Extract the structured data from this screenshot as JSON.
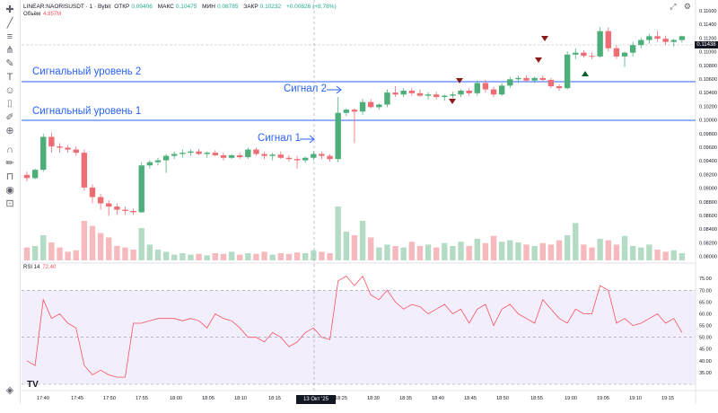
{
  "header": {
    "symbol": "LINEAR:NAORISUSDT · 1 · Bybit",
    "open_label": "ОТКР",
    "open": "0.09406",
    "high_label": "МАКС",
    "high": "0.10475",
    "low_label": "МИН",
    "low": "0.08785",
    "close_label": "ЗАКР",
    "close": "0.10232",
    "change": "+0.00826 (+8.78%)"
  },
  "volume": {
    "label": "Объём",
    "value": "4.857M"
  },
  "rsi": {
    "label": "RSI 14",
    "value": "72.40"
  },
  "price_badge": "0.11438",
  "time_badge": "13 Окт '25 18:21",
  "annotations": {
    "level2": "Сигнальный уровень 2",
    "level1": "Сигнальный уровень 1",
    "signal1": "Сигнал 1",
    "signal2": "Сигнал 2"
  },
  "logo": "TV",
  "chart_data": {
    "type": "candlestick",
    "price_axis": [
      "0.11600",
      "0.11400",
      "0.11200",
      "0.11000",
      "0.10800",
      "0.10600",
      "0.10400",
      "0.10200",
      "0.10000",
      "0.09800",
      "0.09600",
      "0.09400",
      "0.09200",
      "0.09000",
      "0.08800",
      "0.08600",
      "0.08400",
      "0.08200",
      "0.08000"
    ],
    "rsi_axis": [
      "75.00",
      "70.00",
      "65.00",
      "60.00",
      "55.00",
      "50.00",
      "45.00",
      "40.00",
      "35.00"
    ],
    "time_axis": [
      "17:40",
      "17:45",
      "17:50",
      "17:55",
      "18:00",
      "18:05",
      "18:10",
      "18:15",
      "18:25",
      "18:30",
      "18:35",
      "18:40",
      "18:45",
      "18:50",
      "18:55",
      "19:00",
      "19:05",
      "19:10",
      "19:15"
    ],
    "candles": [
      {
        "o": 0.0925,
        "h": 0.093,
        "l": 0.0915,
        "c": 0.092
      },
      {
        "o": 0.092,
        "h": 0.0935,
        "l": 0.0918,
        "c": 0.0933
      },
      {
        "o": 0.0933,
        "h": 0.099,
        "l": 0.093,
        "c": 0.0985
      },
      {
        "o": 0.0985,
        "h": 0.0992,
        "l": 0.096,
        "c": 0.097
      },
      {
        "o": 0.097,
        "h": 0.0975,
        "l": 0.096,
        "c": 0.0968
      },
      {
        "o": 0.0968,
        "h": 0.0972,
        "l": 0.096,
        "c": 0.0965
      },
      {
        "o": 0.0965,
        "h": 0.097,
        "l": 0.0955,
        "c": 0.096
      },
      {
        "o": 0.096,
        "h": 0.0965,
        "l": 0.09,
        "c": 0.0905
      },
      {
        "o": 0.0905,
        "h": 0.091,
        "l": 0.088,
        "c": 0.089
      },
      {
        "o": 0.089,
        "h": 0.0895,
        "l": 0.087,
        "c": 0.088
      },
      {
        "o": 0.088,
        "h": 0.0885,
        "l": 0.086,
        "c": 0.0875
      },
      {
        "o": 0.0875,
        "h": 0.088,
        "l": 0.0862,
        "c": 0.087
      },
      {
        "o": 0.087,
        "h": 0.0875,
        "l": 0.0862,
        "c": 0.0868
      },
      {
        "o": 0.0868,
        "h": 0.0872,
        "l": 0.0862,
        "c": 0.0866
      },
      {
        "o": 0.0866,
        "h": 0.0945,
        "l": 0.0865,
        "c": 0.094
      },
      {
        "o": 0.094,
        "h": 0.0948,
        "l": 0.0935,
        "c": 0.0945
      },
      {
        "o": 0.0945,
        "h": 0.0952,
        "l": 0.094,
        "c": 0.0948
      },
      {
        "o": 0.0948,
        "h": 0.0958,
        "l": 0.0928,
        "c": 0.0955
      },
      {
        "o": 0.0955,
        "h": 0.0962,
        "l": 0.095,
        "c": 0.0958
      },
      {
        "o": 0.0958,
        "h": 0.0965,
        "l": 0.0952,
        "c": 0.096
      },
      {
        "o": 0.096,
        "h": 0.0965,
        "l": 0.0955,
        "c": 0.0962
      },
      {
        "o": 0.0962,
        "h": 0.0966,
        "l": 0.0956,
        "c": 0.0958
      },
      {
        "o": 0.0958,
        "h": 0.0962,
        "l": 0.0952,
        "c": 0.096
      },
      {
        "o": 0.096,
        "h": 0.0964,
        "l": 0.0954,
        "c": 0.0956
      },
      {
        "o": 0.0956,
        "h": 0.096,
        "l": 0.0948,
        "c": 0.0952
      },
      {
        "o": 0.0952,
        "h": 0.0958,
        "l": 0.095,
        "c": 0.0956
      },
      {
        "o": 0.0956,
        "h": 0.096,
        "l": 0.095,
        "c": 0.0953
      },
      {
        "o": 0.0953,
        "h": 0.0968,
        "l": 0.095,
        "c": 0.0965
      },
      {
        "o": 0.0965,
        "h": 0.0968,
        "l": 0.0955,
        "c": 0.0958
      },
      {
        "o": 0.0958,
        "h": 0.0962,
        "l": 0.095,
        "c": 0.0955
      },
      {
        "o": 0.0955,
        "h": 0.096,
        "l": 0.0948,
        "c": 0.0957
      },
      {
        "o": 0.0957,
        "h": 0.0962,
        "l": 0.095,
        "c": 0.0952
      },
      {
        "o": 0.0952,
        "h": 0.0956,
        "l": 0.0946,
        "c": 0.095
      },
      {
        "o": 0.095,
        "h": 0.0955,
        "l": 0.0935,
        "c": 0.0948
      },
      {
        "o": 0.0948,
        "h": 0.0954,
        "l": 0.0944,
        "c": 0.0952
      },
      {
        "o": 0.0952,
        "h": 0.0962,
        "l": 0.0948,
        "c": 0.0958
      },
      {
        "o": 0.0958,
        "h": 0.0962,
        "l": 0.095,
        "c": 0.0955
      },
      {
        "o": 0.0955,
        "h": 0.0958,
        "l": 0.0946,
        "c": 0.095
      },
      {
        "o": 0.095,
        "h": 0.1048,
        "l": 0.0945,
        "c": 0.1023
      },
      {
        "o": 0.1023,
        "h": 0.103,
        "l": 0.1018,
        "c": 0.1028
      },
      {
        "o": 0.1028,
        "h": 0.103,
        "l": 0.0975,
        "c": 0.1025
      },
      {
        "o": 0.1025,
        "h": 0.1045,
        "l": 0.102,
        "c": 0.104
      },
      {
        "o": 0.104,
        "h": 0.1045,
        "l": 0.103,
        "c": 0.1032
      },
      {
        "o": 0.1032,
        "h": 0.1038,
        "l": 0.1028,
        "c": 0.1036
      },
      {
        "o": 0.1036,
        "h": 0.106,
        "l": 0.1032,
        "c": 0.1055
      },
      {
        "o": 0.1055,
        "h": 0.1065,
        "l": 0.1048,
        "c": 0.1052
      },
      {
        "o": 0.1052,
        "h": 0.1062,
        "l": 0.1048,
        "c": 0.1058
      },
      {
        "o": 0.1058,
        "h": 0.1062,
        "l": 0.105,
        "c": 0.1054
      },
      {
        "o": 0.1054,
        "h": 0.106,
        "l": 0.1048,
        "c": 0.105
      },
      {
        "o": 0.105,
        "h": 0.1056,
        "l": 0.1044,
        "c": 0.1052
      },
      {
        "o": 0.1052,
        "h": 0.1056,
        "l": 0.1044,
        "c": 0.1048
      },
      {
        "o": 0.1048,
        "h": 0.1052,
        "l": 0.1042,
        "c": 0.105
      },
      {
        "o": 0.105,
        "h": 0.1056,
        "l": 0.1046,
        "c": 0.1052
      },
      {
        "o": 0.1052,
        "h": 0.106,
        "l": 0.1048,
        "c": 0.1058
      },
      {
        "o": 0.1058,
        "h": 0.1062,
        "l": 0.105,
        "c": 0.1054
      },
      {
        "o": 0.1054,
        "h": 0.1074,
        "l": 0.105,
        "c": 0.107
      },
      {
        "o": 0.107,
        "h": 0.1075,
        "l": 0.1055,
        "c": 0.106
      },
      {
        "o": 0.106,
        "h": 0.1064,
        "l": 0.1048,
        "c": 0.1052
      },
      {
        "o": 0.1052,
        "h": 0.107,
        "l": 0.105,
        "c": 0.1066
      },
      {
        "o": 0.1066,
        "h": 0.108,
        "l": 0.1062,
        "c": 0.1076
      },
      {
        "o": 0.1076,
        "h": 0.1082,
        "l": 0.107,
        "c": 0.1078
      },
      {
        "o": 0.1078,
        "h": 0.1082,
        "l": 0.1072,
        "c": 0.1074
      },
      {
        "o": 0.1074,
        "h": 0.108,
        "l": 0.107,
        "c": 0.1078
      },
      {
        "o": 0.1078,
        "h": 0.1082,
        "l": 0.1072,
        "c": 0.1075
      },
      {
        "o": 0.1075,
        "h": 0.1078,
        "l": 0.1062,
        "c": 0.1065
      },
      {
        "o": 0.1065,
        "h": 0.1068,
        "l": 0.1058,
        "c": 0.1062
      },
      {
        "o": 0.1062,
        "h": 0.112,
        "l": 0.106,
        "c": 0.1115
      },
      {
        "o": 0.1115,
        "h": 0.1125,
        "l": 0.1108,
        "c": 0.1118
      },
      {
        "o": 0.1118,
        "h": 0.1122,
        "l": 0.111,
        "c": 0.1113
      },
      {
        "o": 0.1113,
        "h": 0.1118,
        "l": 0.1108,
        "c": 0.1112
      },
      {
        "o": 0.1112,
        "h": 0.1158,
        "l": 0.111,
        "c": 0.1152
      },
      {
        "o": 0.1152,
        "h": 0.1158,
        "l": 0.112,
        "c": 0.1125
      },
      {
        "o": 0.1125,
        "h": 0.113,
        "l": 0.1108,
        "c": 0.1112
      },
      {
        "o": 0.1112,
        "h": 0.112,
        "l": 0.1095,
        "c": 0.1118
      },
      {
        "o": 0.1118,
        "h": 0.1135,
        "l": 0.1112,
        "c": 0.113
      },
      {
        "o": 0.113,
        "h": 0.1142,
        "l": 0.1125,
        "c": 0.1138
      },
      {
        "o": 0.1138,
        "h": 0.1148,
        "l": 0.1132,
        "c": 0.1144
      },
      {
        "o": 0.1144,
        "h": 0.1152,
        "l": 0.1135,
        "c": 0.114
      },
      {
        "o": 0.114,
        "h": 0.1145,
        "l": 0.113,
        "c": 0.1135
      },
      {
        "o": 0.1135,
        "h": 0.114,
        "l": 0.1128,
        "c": 0.1138
      },
      {
        "o": 0.1138,
        "h": 0.1145,
        "l": 0.1134,
        "c": 0.1144
      }
    ],
    "volume_rel": [
      0.18,
      0.2,
      0.35,
      0.25,
      0.18,
      0.12,
      0.14,
      0.55,
      0.48,
      0.38,
      0.32,
      0.2,
      0.18,
      0.15,
      0.45,
      0.22,
      0.15,
      0.12,
      0.08,
      0.1,
      0.08,
      0.09,
      0.07,
      0.1,
      0.09,
      0.12,
      0.08,
      0.1,
      0.09,
      0.12,
      0.08,
      0.1,
      0.09,
      0.11,
      0.1,
      0.14,
      0.12,
      0.1,
      0.75,
      0.4,
      0.35,
      0.55,
      0.32,
      0.18,
      0.22,
      0.2,
      0.18,
      0.26,
      0.2,
      0.22,
      0.18,
      0.24,
      0.2,
      0.26,
      0.2,
      0.3,
      0.24,
      0.34,
      0.26,
      0.28,
      0.25,
      0.22,
      0.2,
      0.24,
      0.22,
      0.28,
      0.35,
      0.52,
      0.22,
      0.18,
      0.3,
      0.28,
      0.22,
      0.34,
      0.2,
      0.18,
      0.22,
      0.15,
      0.12,
      0.14,
      0.1
    ],
    "rsi": [
      40,
      38,
      66,
      58,
      60,
      56,
      54,
      38,
      34,
      36,
      34,
      33,
      33,
      56,
      56,
      57,
      58,
      58,
      58,
      57,
      58,
      57,
      54,
      60,
      58,
      57,
      54,
      50,
      50,
      48,
      52,
      50,
      46,
      48,
      52,
      54,
      50,
      49,
      74,
      76,
      72,
      76,
      68,
      66,
      70,
      65,
      62,
      64,
      63,
      60,
      62,
      64,
      60,
      62,
      56,
      62,
      64,
      55,
      62,
      64,
      60,
      58,
      56,
      66,
      62,
      58,
      56,
      62,
      60,
      60,
      72,
      70,
      56,
      58,
      55,
      56,
      58,
      60,
      56,
      58,
      52
    ]
  }
}
